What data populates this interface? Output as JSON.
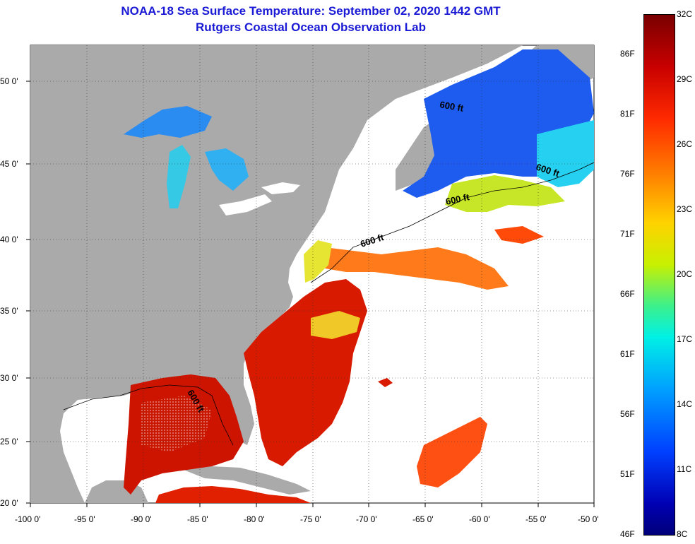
{
  "title": {
    "line1": "NOAA-18 Sea Surface Temperature:  September 02, 2020 1442 GMT",
    "line2": "Rutgers Coastal Ocean Observation Lab"
  },
  "map": {
    "lon_range": [
      -100,
      -50
    ],
    "lat_range": [
      20,
      52
    ],
    "x_ticks": [
      "-100 0'",
      "-95 0'",
      "-90 0'",
      "-85 0'",
      "-80 0'",
      "-75 0'",
      "-70 0'",
      "-65 0'",
      "-60 0'",
      "-55 0'",
      "-50 0'"
    ],
    "y_ticks": [
      "50 0'",
      "45 0'",
      "40 0'",
      "35 0'",
      "30 0'",
      "25 0'",
      "20 0'"
    ],
    "contour_label": "600 ft",
    "land_color": "#aaaaaa",
    "nodata_color": "#ffffff",
    "grid": "dotted"
  },
  "colorbar": {
    "celsius": [
      "32C",
      "29C",
      "26C",
      "23C",
      "20C",
      "17C",
      "14C",
      "11C",
      "8C"
    ],
    "fahrenheit": [
      "86F",
      "81F",
      "76F",
      "71F",
      "66F",
      "61F",
      "56F",
      "51F",
      "46F"
    ],
    "range_c": [
      8,
      32
    ],
    "colors": [
      "#7a0000",
      "#ff2a00",
      "#ffd200",
      "#3cf08c",
      "#00f0e6",
      "#0040ff",
      "#00007a"
    ]
  }
}
